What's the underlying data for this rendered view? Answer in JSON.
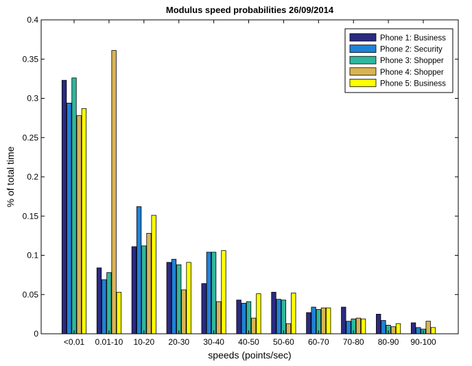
{
  "chart_data": {
    "type": "bar",
    "title": "Modulus speed probabilities 26/09/2014",
    "xlabel": "speeds (points/sec)",
    "ylabel": "% of total time",
    "ylim": [
      0,
      0.4
    ],
    "yticks": [
      0,
      0.05,
      0.1,
      0.15,
      0.2,
      0.25,
      0.3,
      0.35,
      0.4
    ],
    "ytick_labels": [
      "0",
      "0.05",
      "0.1",
      "0.15",
      "0.2",
      "0.25",
      "0.3",
      "0.35",
      "0.4"
    ],
    "grid": false,
    "legend_position": "top-right",
    "categories": [
      "<0.01",
      "0.01-10",
      "10-20",
      "20-30",
      "30-40",
      "40-50",
      "50-60",
      "60-70",
      "70-80",
      "80-90",
      "90-100"
    ],
    "series": [
      {
        "name": "Phone 1: Business",
        "color": "#2b2a82",
        "values": [
          0.323,
          0.084,
          0.111,
          0.091,
          0.064,
          0.043,
          0.053,
          0.027,
          0.034,
          0.025,
          0.014
        ]
      },
      {
        "name": "Phone 2: Security",
        "color": "#1f82d6",
        "values": [
          0.294,
          0.069,
          0.162,
          0.095,
          0.104,
          0.039,
          0.044,
          0.034,
          0.016,
          0.017,
          0.008
        ]
      },
      {
        "name": "Phone 3: Shopper",
        "color": "#2fb79d",
        "values": [
          0.326,
          0.078,
          0.112,
          0.088,
          0.104,
          0.041,
          0.043,
          0.031,
          0.019,
          0.011,
          0.006
        ]
      },
      {
        "name": "Phone 4: Shopper",
        "color": "#d9b454",
        "values": [
          0.278,
          0.361,
          0.128,
          0.056,
          0.041,
          0.02,
          0.013,
          0.033,
          0.02,
          0.009,
          0.016
        ]
      },
      {
        "name": "Phone 5: Business",
        "color": "#ffff00",
        "values": [
          0.287,
          0.053,
          0.151,
          0.091,
          0.106,
          0.051,
          0.052,
          0.033,
          0.019,
          0.013,
          0.008
        ]
      }
    ]
  }
}
